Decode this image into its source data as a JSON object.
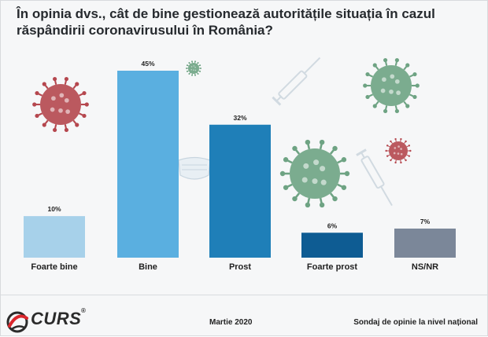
{
  "title": "În opinia dvs., cât de bine gestionează autoritățile situația în cazul răspândirii coronavirusului în România?",
  "chart_data": {
    "type": "bar",
    "categories": [
      "Foarte bine",
      "Bine",
      "Prost",
      "Foarte prost",
      "NS/NR"
    ],
    "values": [
      10,
      45,
      32,
      6,
      7
    ],
    "value_labels": [
      "10%",
      "45%",
      "32%",
      "6%",
      "7%"
    ],
    "colors": [
      "#a7d1ea",
      "#5aafe0",
      "#1f7fb8",
      "#0e5c93",
      "#7b8799"
    ],
    "title": "În opinia dvs., cât de bine gestionează autoritățile situația în cazul răspândirii coronavirusului în România?",
    "xlabel": "",
    "ylabel": "",
    "ylim": [
      0,
      50
    ],
    "grid": false,
    "legend": "none"
  },
  "decorations": {
    "virus_color_red": "#b5474e",
    "virus_color_green": "#6ea383",
    "virus_icons": [
      "virus-icon",
      "syringe-icon",
      "face-mask-icon"
    ]
  },
  "footer": {
    "logo_text": "CURS",
    "logo_reg": "®",
    "date": "Martie 2020",
    "source": "Sondaj de opinie la nivel național"
  }
}
